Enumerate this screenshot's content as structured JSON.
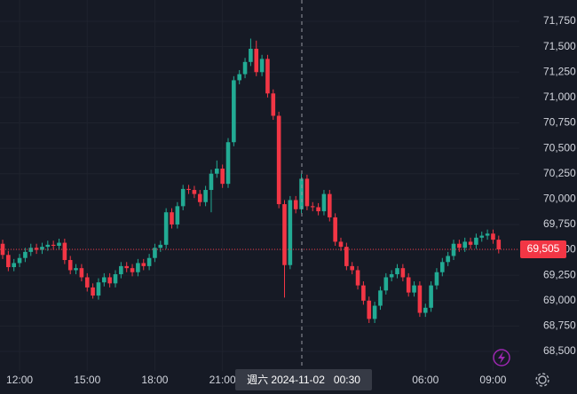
{
  "chart_data": {
    "type": "candlestick",
    "categories": [
      null,
      null,
      null,
      "12:00",
      null,
      null,
      null,
      null,
      null,
      null,
      null,
      null,
      null,
      null,
      null,
      "15:00",
      null,
      null,
      null,
      null,
      null,
      null,
      null,
      null,
      null,
      null,
      null,
      "18:00",
      null,
      null,
      null,
      null,
      null,
      null,
      null,
      null,
      null,
      null,
      null,
      "21:00",
      null,
      null,
      null,
      null,
      null,
      null,
      null,
      null,
      null,
      null,
      null,
      null,
      null,
      null,
      null,
      null,
      null,
      null,
      null,
      null,
      null,
      null,
      null,
      null,
      null,
      null,
      null,
      null,
      null,
      null,
      null,
      null,
      null,
      null,
      null,
      "06:00",
      null,
      null,
      null,
      null,
      null,
      null,
      null,
      null,
      null,
      null,
      null,
      "09:00",
      null
    ],
    "open": [
      69560,
      69450,
      69330,
      69370,
      69420,
      69480,
      69520,
      69500,
      69530,
      69550,
      69540,
      69570,
      69400,
      69300,
      69320,
      69230,
      69130,
      69050,
      69180,
      69230,
      69170,
      69260,
      69340,
      69320,
      69280,
      69370,
      69340,
      69420,
      69520,
      69550,
      69870,
      69750,
      69930,
      70100,
      70090,
      70050,
      69970,
      70090,
      70250,
      70300,
      70150,
      70560,
      71170,
      71230,
      71350,
      71480,
      71250,
      71380,
      71040,
      70820,
      69950,
      69350,
      69990,
      69900,
      70200,
      69930,
      69920,
      69880,
      70050,
      69820,
      69580,
      69530,
      69340,
      69300,
      69150,
      69000,
      68820,
      68950,
      69100,
      69230,
      69260,
      69320,
      69230,
      69080,
      69150,
      68880,
      68930,
      69150,
      69280,
      69380,
      69440,
      69560,
      69520,
      69580,
      69550,
      69620,
      69640,
      69660,
      69600
    ],
    "high": [
      69600,
      69490,
      69410,
      69460,
      69520,
      69560,
      69560,
      69570,
      69590,
      69590,
      69610,
      69610,
      69440,
      69360,
      69360,
      69270,
      69170,
      69220,
      69270,
      69270,
      69300,
      69380,
      69380,
      69360,
      69410,
      69410,
      69460,
      69560,
      69590,
      69910,
      69910,
      69970,
      70140,
      70140,
      70130,
      70090,
      70130,
      70290,
      70380,
      70340,
      70600,
      71210,
      71270,
      71390,
      71580,
      71560,
      71420,
      71420,
      71080,
      70860,
      69990,
      70030,
      70030,
      70250,
      70240,
      69970,
      69960,
      70090,
      70090,
      69860,
      69620,
      69570,
      69380,
      69340,
      69190,
      69040,
      68990,
      69140,
      69270,
      69300,
      69360,
      69360,
      69270,
      69190,
      69190,
      68970,
      69190,
      69320,
      69420,
      69480,
      69600,
      69600,
      69620,
      69620,
      69660,
      69680,
      69700,
      69700,
      69640
    ],
    "low": [
      69410,
      69290,
      69290,
      69330,
      69380,
      69440,
      69460,
      69460,
      69490,
      69500,
      69500,
      69360,
      69260,
      69260,
      69190,
      69090,
      69020,
      69010,
      69140,
      69130,
      69130,
      69220,
      69280,
      69240,
      69240,
      69300,
      69300,
      69380,
      69480,
      69510,
      69710,
      69710,
      69890,
      70050,
      70010,
      69930,
      69930,
      69870,
      70210,
      70110,
      70110,
      70520,
      71130,
      71190,
      71310,
      71210,
      71210,
      71000,
      70780,
      69910,
      69030,
      69310,
      69860,
      69860,
      69890,
      69880,
      69840,
      69840,
      69780,
      69540,
      69490,
      69300,
      69260,
      69110,
      68960,
      68780,
      68780,
      68910,
      69060,
      69190,
      69220,
      69190,
      69040,
      69040,
      68840,
      68840,
      68890,
      69110,
      69240,
      69340,
      69400,
      69480,
      69480,
      69510,
      69510,
      69580,
      69600,
      69560,
      69465
    ],
    "close": [
      69450,
      69330,
      69370,
      69420,
      69480,
      69520,
      69500,
      69530,
      69550,
      69540,
      69570,
      69400,
      69300,
      69320,
      69230,
      69130,
      69050,
      69180,
      69230,
      69170,
      69260,
      69340,
      69320,
      69280,
      69370,
      69340,
      69420,
      69520,
      69550,
      69870,
      69750,
      69930,
      70100,
      70090,
      70050,
      69970,
      70090,
      70250,
      70300,
      70150,
      70560,
      71170,
      71230,
      71350,
      71480,
      71250,
      71380,
      71040,
      70820,
      69950,
      69350,
      69990,
      69900,
      70200,
      69930,
      69920,
      69880,
      70050,
      69820,
      69580,
      69530,
      69340,
      69300,
      69150,
      69000,
      68820,
      68950,
      69100,
      69230,
      69260,
      69320,
      69230,
      69080,
      69150,
      68880,
      68930,
      69150,
      69280,
      69380,
      69440,
      69560,
      69520,
      69580,
      69550,
      69620,
      69640,
      69660,
      69600,
      69505
    ],
    "up_color": "#22ab94",
    "down_color": "#f23645",
    "ylim": [
      68308,
      71960
    ],
    "yticks": [
      {
        "value": 68500,
        "label": "68,500"
      },
      {
        "value": 68750,
        "label": "68,750"
      },
      {
        "value": 69000,
        "label": "69,000"
      },
      {
        "value": 69250,
        "label": "69,250"
      },
      {
        "value": 69500,
        "label": "69,500"
      },
      {
        "value": 69750,
        "label": "69,750"
      },
      {
        "value": 70000,
        "label": "70,000"
      },
      {
        "value": 70250,
        "label": "70,250"
      },
      {
        "value": 70500,
        "label": "70,500"
      },
      {
        "value": 70750,
        "label": "70,750"
      },
      {
        "value": 71000,
        "label": "71,000"
      },
      {
        "value": 71250,
        "label": "71,250"
      },
      {
        "value": 71500,
        "label": "71,500"
      },
      {
        "value": 71750,
        "label": "71,750"
      }
    ],
    "grid": true,
    "last_price": {
      "value": 69505,
      "label": "69,505"
    },
    "crosshair_label": "週六 2024-11-02   00:30"
  }
}
